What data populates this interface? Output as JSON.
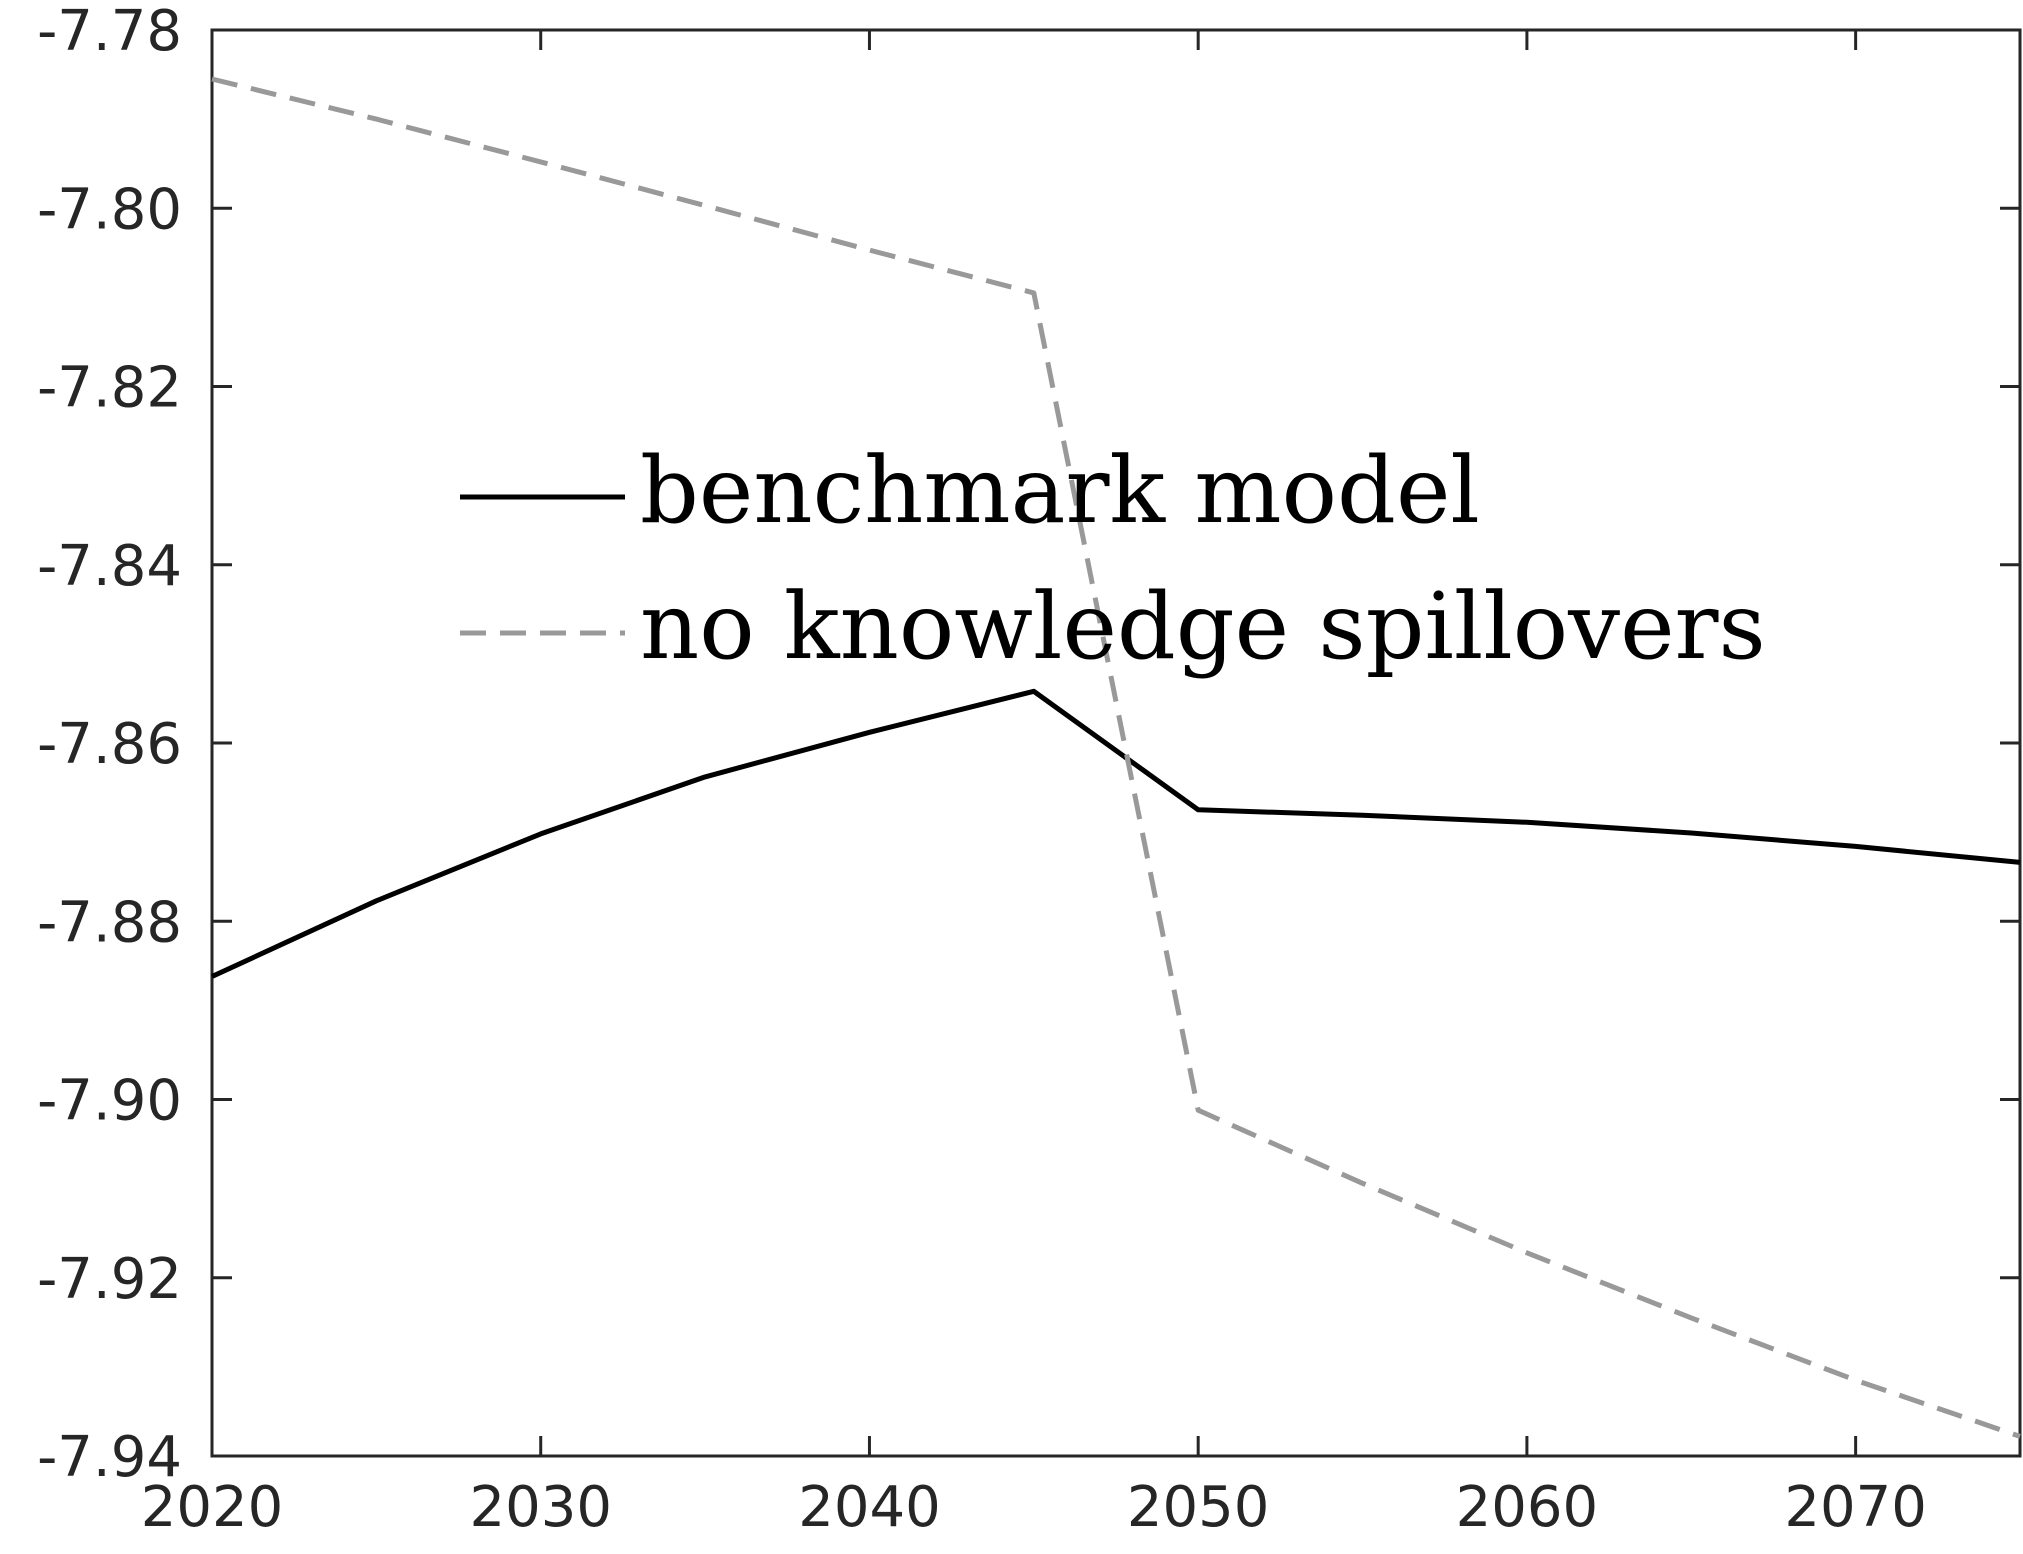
{
  "chart_data": {
    "type": "line",
    "title": "",
    "xlabel": "",
    "ylabel": "",
    "xlim": [
      2020,
      2075
    ],
    "ylim": [
      -7.94,
      -7.78
    ],
    "xticks": [
      2020,
      2030,
      2040,
      2050,
      2060,
      2070
    ],
    "yticks": [
      -7.94,
      -7.92,
      -7.9,
      -7.88,
      -7.86,
      -7.84,
      -7.82,
      -7.8,
      -7.78
    ],
    "x_tick_labels": [
      "2020",
      "2030",
      "2040",
      "2050",
      "2060",
      "2070"
    ],
    "y_tick_labels": [
      "-7.94",
      "-7.92",
      "-7.90",
      "-7.88",
      "-7.86",
      "-7.84",
      "-7.82",
      "-7.80",
      "-7.78"
    ],
    "grid": false,
    "legend_position": "center",
    "x": [
      2020,
      2025,
      2030,
      2035,
      2040,
      2045,
      2050,
      2055,
      2060,
      2065,
      2070,
      2075
    ],
    "series": [
      {
        "name": "benchmark model",
        "style": "solid",
        "color": "#000000",
        "values": [
          -7.8862,
          -7.8777,
          -7.8702,
          -7.8638,
          -7.8588,
          -7.8542,
          -7.8675,
          -7.8681,
          -7.8689,
          -7.8701,
          -7.8716,
          -7.8734
        ]
      },
      {
        "name": "no knowledge spillovers",
        "style": "dashed",
        "color": "#999999",
        "values": [
          -7.7855,
          -7.79,
          -7.7948,
          -7.7997,
          -7.8047,
          -7.8095,
          -7.9012,
          -7.9094,
          -7.9172,
          -7.9245,
          -7.9315,
          -7.9378
        ]
      }
    ]
  }
}
